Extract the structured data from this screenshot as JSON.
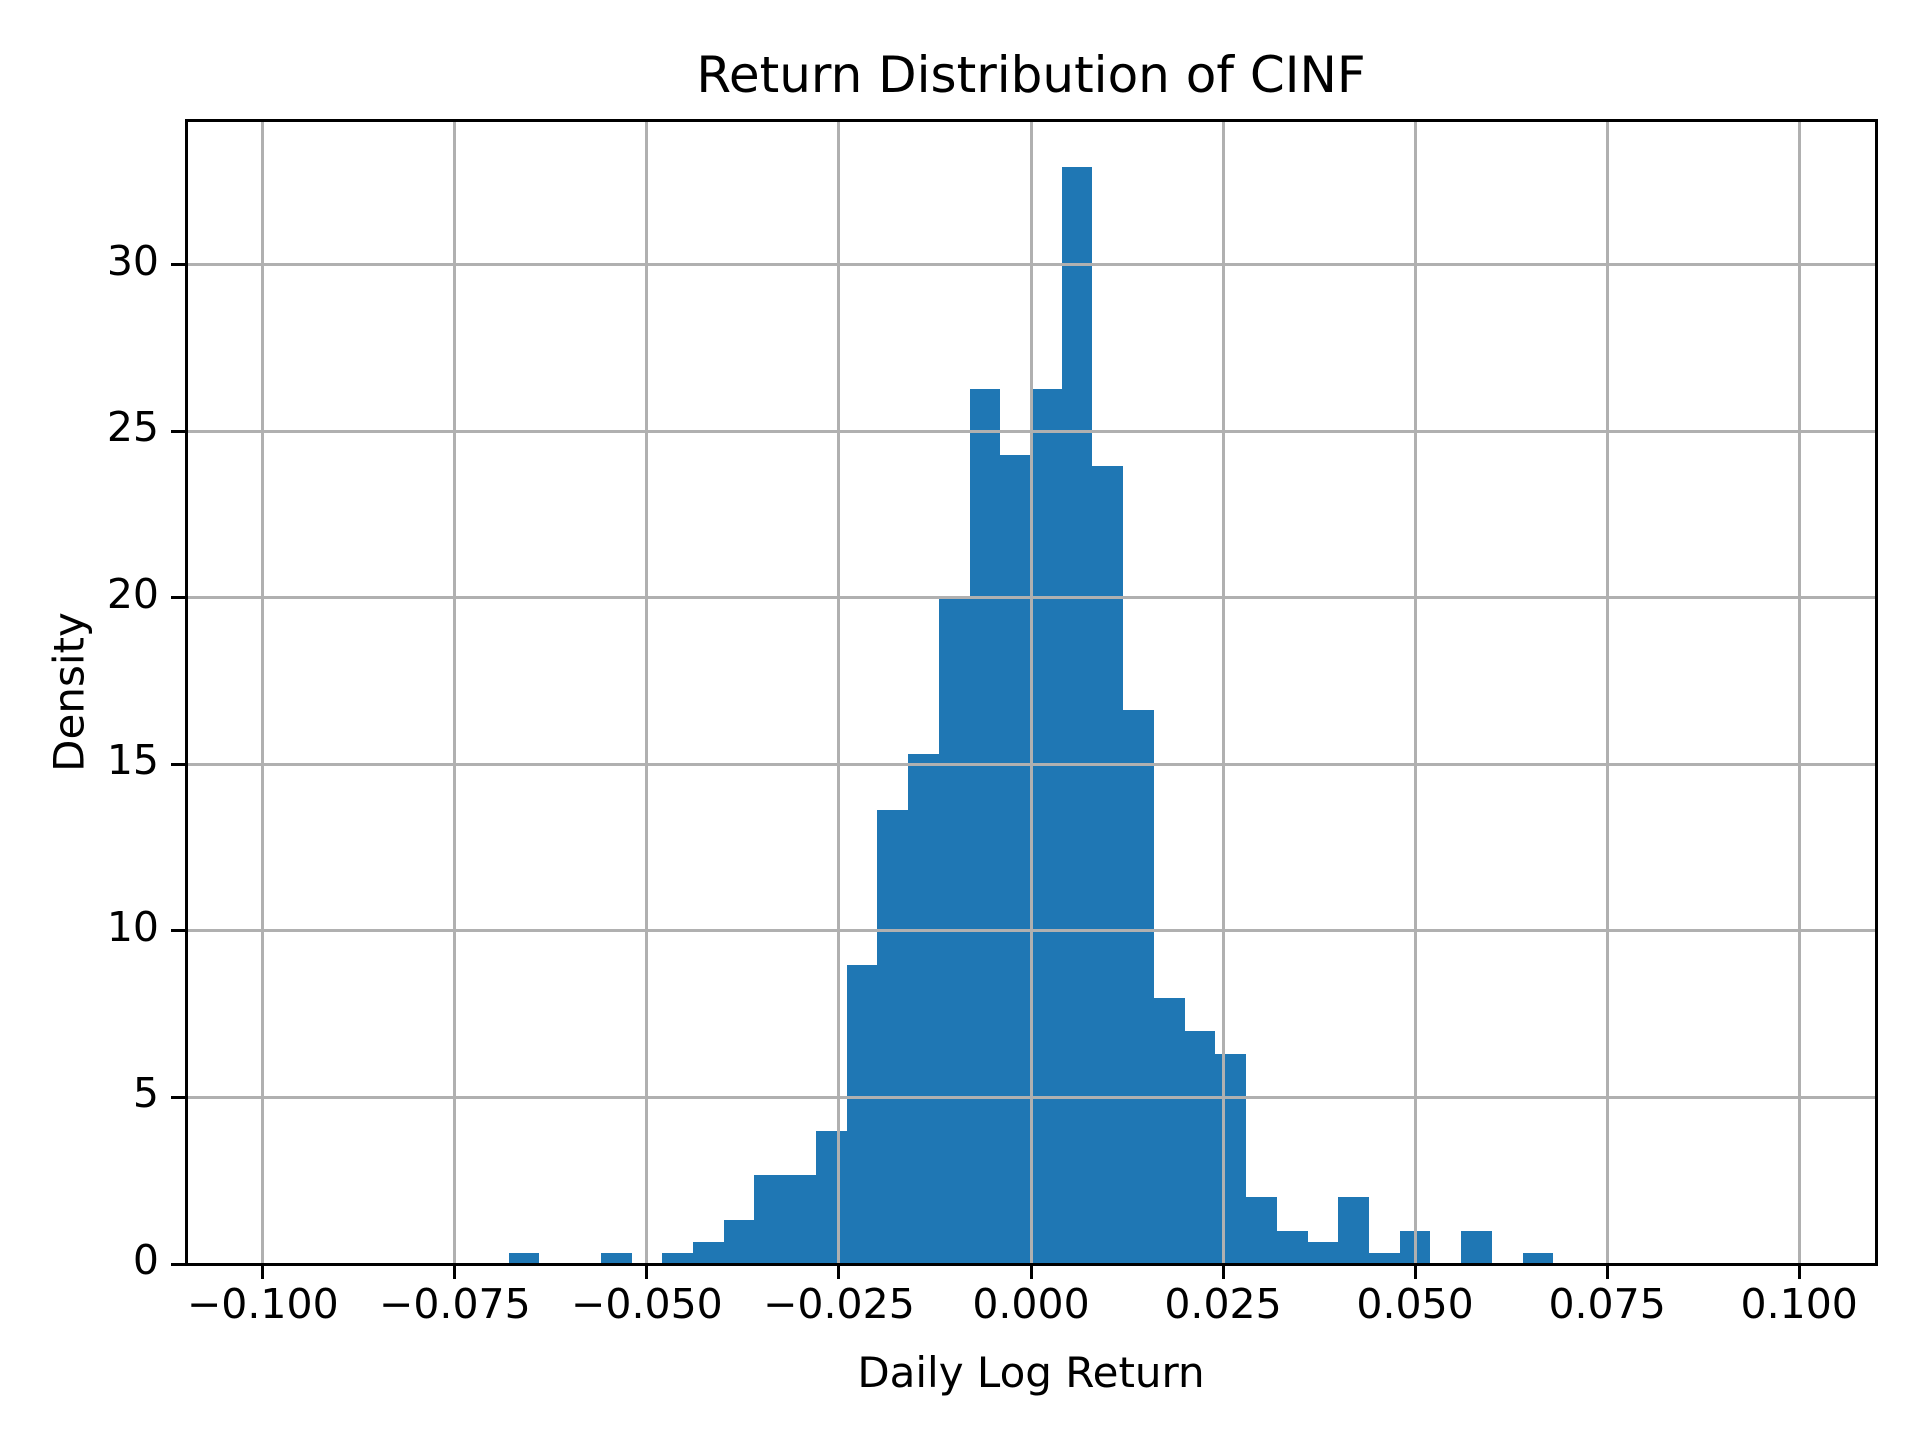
{
  "figure": {
    "background": "#ffffff"
  },
  "chart_data": {
    "type": "bar",
    "chart_kind": "histogram",
    "title": "Return Distribution of CINF",
    "xlabel": "Daily Log Return",
    "ylabel": "Density",
    "grid": true,
    "legend": "none",
    "bar_color": "#1f77b4",
    "grid_color": "#b0b0b0",
    "spine_color": "#000000",
    "text_color": "#000000",
    "xlim": [
      -0.11,
      0.11
    ],
    "ylim": [
      0,
      34.35
    ],
    "xticks": [
      {
        "value": -0.1,
        "label": "−0.100"
      },
      {
        "value": -0.075,
        "label": "−0.075"
      },
      {
        "value": -0.05,
        "label": "−0.050"
      },
      {
        "value": -0.025,
        "label": "−0.025"
      },
      {
        "value": 0.0,
        "label": "0.000"
      },
      {
        "value": 0.025,
        "label": "0.025"
      },
      {
        "value": 0.05,
        "label": "0.050"
      },
      {
        "value": 0.075,
        "label": "0.075"
      },
      {
        "value": 0.1,
        "label": "0.100"
      }
    ],
    "yticks": [
      {
        "value": 0,
        "label": "0"
      },
      {
        "value": 5,
        "label": "5"
      },
      {
        "value": 10,
        "label": "10"
      },
      {
        "value": 15,
        "label": "15"
      },
      {
        "value": 20,
        "label": "20"
      },
      {
        "value": 25,
        "label": "25"
      },
      {
        "value": 30,
        "label": "30"
      }
    ],
    "histogram": {
      "bin_start": -0.068,
      "bin_width": 0.004,
      "bin_count": 34,
      "densities": [
        0.33,
        0,
        0,
        0.33,
        0,
        0.33,
        0.67,
        1.33,
        2.66,
        2.66,
        3.99,
        8.98,
        13.64,
        15.3,
        19.96,
        26.28,
        24.28,
        26.28,
        32.93,
        23.95,
        16.63,
        7.98,
        6.99,
        6.32,
        2.0,
        1.0,
        0.67,
        2.0,
        0.33,
        1.0,
        0,
        1.0,
        0,
        0.33
      ]
    }
  }
}
